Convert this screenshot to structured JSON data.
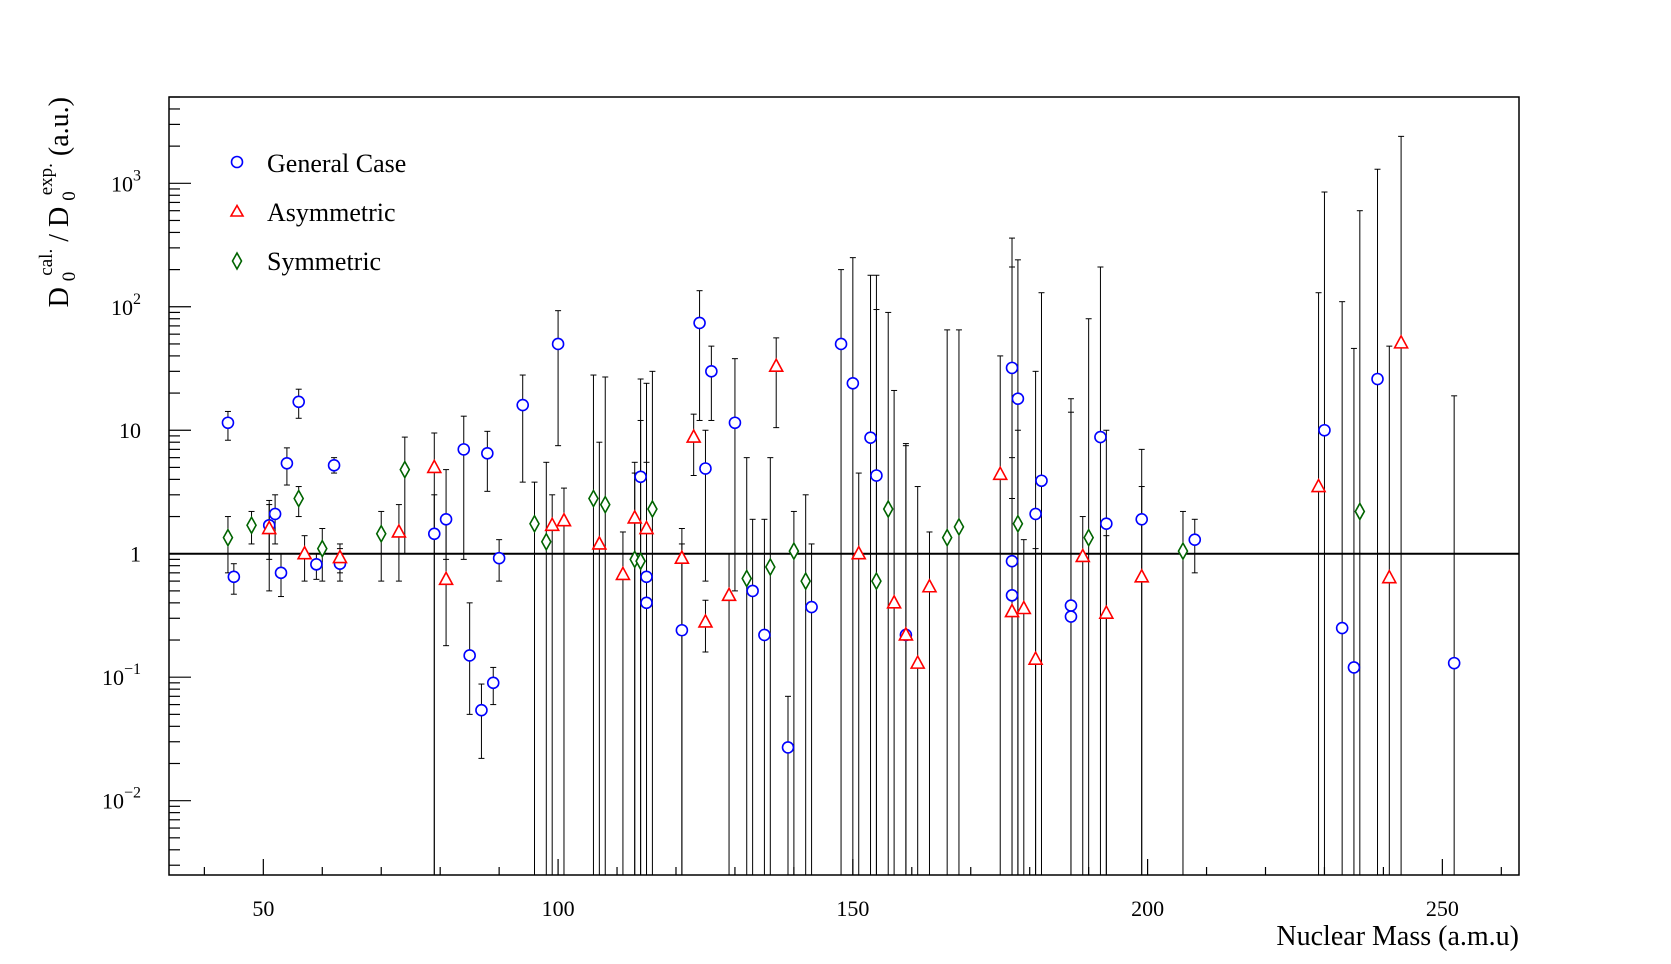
{
  "colors": {
    "general": "#0000ff",
    "asym": "#ff0000",
    "sym": "#006400",
    "errorbar": "#000000",
    "reference_line": "#000000"
  },
  "chart_data": {
    "type": "scatter",
    "yscale": "log",
    "xlim": [
      34,
      263
    ],
    "ylim": [
      0.0025,
      5000
    ],
    "xlabel": "Nuclear Mass (a.m.u)",
    "ylabel": {
      "base": "D",
      "sub": "0",
      "sup_num": "cal.",
      "sep": " / ",
      "sup_den": "exp.",
      "unit": " (a.u.)"
    },
    "x_ticks": [
      {
        "value": 50,
        "label": "50"
      },
      {
        "value": 100,
        "label": "100"
      },
      {
        "value": 150,
        "label": "150"
      },
      {
        "value": 200,
        "label": "200"
      },
      {
        "value": 250,
        "label": "250"
      }
    ],
    "y_ticks": [
      {
        "value": 0.01,
        "base": "10",
        "exp": "−2"
      },
      {
        "value": 0.1,
        "base": "10",
        "exp": "−1"
      },
      {
        "value": 1,
        "base": "1",
        "exp": ""
      },
      {
        "value": 10,
        "base": "10",
        "exp": ""
      },
      {
        "value": 100,
        "base": "10",
        "exp": "2"
      },
      {
        "value": 1000,
        "base": "10",
        "exp": "3"
      }
    ],
    "reference_line": 1,
    "legend_position": "top-left",
    "series": [
      {
        "key": "general",
        "name": "General Case",
        "marker": "circle",
        "points": [
          [
            44,
            11.5,
            8.3,
            14.2
          ],
          [
            45,
            0.65,
            0.47,
            0.83
          ],
          [
            51,
            1.7,
            0.9,
            2.5
          ],
          [
            52,
            2.1,
            1.2,
            3.0
          ],
          [
            53,
            0.7,
            0.45,
            1.0
          ],
          [
            54,
            5.4,
            3.6,
            7.2
          ],
          [
            56,
            17.0,
            12.5,
            21.5
          ],
          [
            59,
            0.82,
            0.62,
            1.0
          ],
          [
            62,
            5.2,
            4.5,
            6.0
          ],
          [
            63,
            0.83,
            0.6,
            1.1
          ],
          [
            79,
            1.45,
            0.0,
            3.0
          ],
          [
            81,
            1.9,
            0.9,
            4.8
          ],
          [
            84,
            7.0,
            0.9,
            13.0
          ],
          [
            85,
            0.15,
            0.05,
            0.4
          ],
          [
            87,
            0.054,
            0.022,
            0.088
          ],
          [
            88,
            6.5,
            3.2,
            9.8
          ],
          [
            89,
            0.09,
            0.06,
            0.12
          ],
          [
            90,
            0.92,
            0.6,
            1.3
          ],
          [
            94,
            16.0,
            3.8,
            28.0
          ],
          [
            100,
            50.0,
            7.5,
            93.0
          ],
          [
            114,
            4.2,
            0.0,
            12.0
          ],
          [
            115,
            0.65,
            0.0,
            24.0
          ],
          [
            115,
            0.4,
            0.0,
            1.0
          ],
          [
            121,
            0.24,
            0.0,
            1.2
          ],
          [
            124,
            74.0,
            12.0,
            135.0
          ],
          [
            125,
            4.9,
            0.6,
            10.0
          ],
          [
            126,
            30.0,
            12.0,
            48.0
          ],
          [
            130,
            11.5,
            0.5,
            38.0
          ],
          [
            133,
            0.5,
            0.0,
            1.9
          ],
          [
            135,
            0.22,
            0.0,
            1.9
          ],
          [
            139,
            0.027,
            0.0,
            0.07
          ],
          [
            143,
            0.37,
            0.0,
            1.2
          ],
          [
            148,
            50.0,
            0.0,
            200.0
          ],
          [
            150,
            24.0,
            0.0,
            250.0
          ],
          [
            153,
            8.7,
            0.0,
            180.0
          ],
          [
            154,
            4.3,
            0.0,
            95.0
          ],
          [
            159,
            0.22,
            0.0,
            7.5
          ],
          [
            177,
            32.0,
            0.0,
            360.0
          ],
          [
            177,
            0.87,
            0.0,
            210.0
          ],
          [
            177,
            0.46,
            0.0,
            6.0
          ],
          [
            178,
            18.0,
            0.0,
            240.0
          ],
          [
            181,
            2.1,
            0.0,
            30.0
          ],
          [
            182,
            3.9,
            0.0,
            130.0
          ],
          [
            187,
            0.38,
            0.0,
            18.0
          ],
          [
            187,
            0.31,
            0.0,
            14.0
          ],
          [
            192,
            8.8,
            0.0,
            210.0
          ],
          [
            193,
            1.75,
            0.0,
            10.0
          ],
          [
            199,
            1.9,
            0.0,
            3.5
          ],
          [
            208,
            1.3,
            0.7,
            1.9
          ],
          [
            230,
            10.0,
            0.0,
            850.0
          ],
          [
            233,
            0.25,
            0.0,
            110.0
          ],
          [
            235,
            0.12,
            0.0,
            46.0
          ],
          [
            239,
            26.0,
            0.0,
            1300.0
          ],
          [
            252,
            0.13,
            0.0,
            19.0
          ]
        ]
      },
      {
        "key": "asym",
        "name": "Asymmetric",
        "marker": "triangle",
        "points": [
          [
            51,
            1.6,
            0.5,
            2.7
          ],
          [
            57,
            1.0,
            0.6,
            1.4
          ],
          [
            63,
            0.93,
            0.7,
            1.2
          ],
          [
            73,
            1.5,
            0.6,
            2.5
          ],
          [
            79,
            5.0,
            0.0,
            9.5
          ],
          [
            81,
            0.62,
            0.18,
            1.9
          ],
          [
            99,
            1.7,
            0.0,
            3.0
          ],
          [
            101,
            1.85,
            0.0,
            3.4
          ],
          [
            107,
            1.2,
            0.0,
            8.0
          ],
          [
            111,
            0.68,
            0.0,
            1.5
          ],
          [
            113,
            1.95,
            0.0,
            5.5
          ],
          [
            115,
            1.6,
            0.0,
            5.5
          ],
          [
            121,
            0.92,
            0.0,
            1.6
          ],
          [
            123,
            8.8,
            4.3,
            13.5
          ],
          [
            125,
            0.28,
            0.16,
            0.42
          ],
          [
            129,
            0.46,
            0.0,
            1.0
          ],
          [
            137,
            33.0,
            10.5,
            56.0
          ],
          [
            151,
            1.0,
            0.0,
            4.5
          ],
          [
            157,
            0.4,
            0.0,
            21.0
          ],
          [
            159,
            0.22,
            0.0,
            7.8
          ],
          [
            161,
            0.13,
            0.0,
            3.5
          ],
          [
            163,
            0.54,
            0.0,
            1.5
          ],
          [
            175,
            4.4,
            0.0,
            40.0
          ],
          [
            177,
            0.34,
            0.0,
            2.8
          ],
          [
            179,
            0.36,
            0.0,
            1.3
          ],
          [
            181,
            0.14,
            0.0,
            1.1
          ],
          [
            189,
            0.95,
            0.0,
            2.0
          ],
          [
            193,
            0.33,
            0.0,
            1.4
          ],
          [
            199,
            0.65,
            0.0,
            7.0
          ],
          [
            229,
            3.5,
            0.0,
            130.0
          ],
          [
            241,
            0.64,
            0.0,
            48.0
          ],
          [
            243,
            51.0,
            0.0,
            2400.0
          ]
        ]
      },
      {
        "key": "sym",
        "name": "Symmetric",
        "marker": "diamond",
        "points": [
          [
            44,
            1.35,
            0.7,
            2.0
          ],
          [
            48,
            1.7,
            1.2,
            2.2
          ],
          [
            56,
            2.8,
            2.0,
            3.5
          ],
          [
            60,
            1.1,
            0.6,
            1.6
          ],
          [
            70,
            1.45,
            0.6,
            2.2
          ],
          [
            74,
            4.8,
            1.0,
            8.8
          ],
          [
            96,
            1.75,
            0.0,
            3.8
          ],
          [
            98,
            1.25,
            0.0,
            5.5
          ],
          [
            106,
            2.8,
            0.0,
            28.0
          ],
          [
            108,
            2.5,
            0.0,
            27.0
          ],
          [
            113,
            0.9,
            0.0,
            4.5
          ],
          [
            114,
            0.87,
            0.0,
            26.0
          ],
          [
            116,
            2.3,
            0.0,
            30.0
          ],
          [
            132,
            0.63,
            0.0,
            6.0
          ],
          [
            136,
            0.78,
            0.0,
            6.0
          ],
          [
            140,
            1.05,
            0.0,
            2.2
          ],
          [
            142,
            0.6,
            0.0,
            3.0
          ],
          [
            154,
            0.6,
            0.0,
            180.0
          ],
          [
            156,
            2.3,
            0.0,
            90.0
          ],
          [
            166,
            1.35,
            0.0,
            65.0
          ],
          [
            168,
            1.65,
            0.0,
            65.0
          ],
          [
            178,
            1.75,
            0.0,
            10.0
          ],
          [
            190,
            1.35,
            0.0,
            80.0
          ],
          [
            206,
            1.05,
            0.0,
            2.2
          ],
          [
            236,
            2.2,
            0.0,
            600.0
          ]
        ]
      }
    ]
  }
}
